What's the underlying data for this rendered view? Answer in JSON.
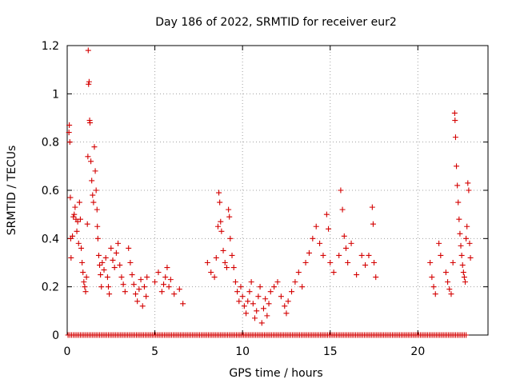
{
  "chart_data": {
    "type": "scatter",
    "title": "Day 186 of 2022, SRMTID for receiver eur2",
    "xlabel": "GPS time / hours",
    "ylabel": "SRMTID / TECUs",
    "xlim": [
      0,
      24
    ],
    "ylim": [
      0,
      1.2
    ],
    "x_ticks": [
      0,
      5,
      10,
      15,
      20
    ],
    "x_tick_labels": [
      "0",
      "5",
      "10",
      "15",
      "20"
    ],
    "y_ticks": [
      0,
      0.2,
      0.4,
      0.6,
      0.8,
      1.0,
      1.2
    ],
    "y_tick_labels": [
      "0",
      "0.2",
      "0.4",
      "0.6",
      "0.8",
      "1",
      "1.2"
    ],
    "grid": true,
    "marker": "+",
    "series_color": "#d40000",
    "series": [
      {
        "name": "SRMTID",
        "note": "approximate values read from the plot; zero-valued points run densely along the x-axis",
        "points": [
          [
            0.1,
            0.84
          ],
          [
            0.12,
            0.87
          ],
          [
            0.15,
            0.8
          ],
          [
            0.18,
            0.57
          ],
          [
            0.2,
            0.4
          ],
          [
            0.22,
            0.32
          ],
          [
            0.3,
            0.41
          ],
          [
            0.35,
            0.49
          ],
          [
            0.4,
            0.5
          ],
          [
            0.45,
            0.53
          ],
          [
            0.5,
            0.48
          ],
          [
            0.55,
            0.43
          ],
          [
            0.6,
            0.47
          ],
          [
            0.65,
            0.38
          ],
          [
            0.7,
            0.55
          ],
          [
            0.75,
            0.48
          ],
          [
            0.8,
            0.36
          ],
          [
            0.85,
            0.3
          ],
          [
            0.9,
            0.26
          ],
          [
            0.95,
            0.22
          ],
          [
            1.0,
            0.2
          ],
          [
            1.05,
            0.18
          ],
          [
            1.1,
            0.24
          ],
          [
            1.15,
            0.46
          ],
          [
            1.18,
            0.74
          ],
          [
            1.2,
            1.18
          ],
          [
            1.22,
            1.04
          ],
          [
            1.25,
            1.05
          ],
          [
            1.28,
            0.89
          ],
          [
            1.3,
            0.88
          ],
          [
            1.35,
            0.72
          ],
          [
            1.4,
            0.64
          ],
          [
            1.45,
            0.58
          ],
          [
            1.5,
            0.55
          ],
          [
            1.55,
            0.78
          ],
          [
            1.6,
            0.68
          ],
          [
            1.65,
            0.6
          ],
          [
            1.7,
            0.52
          ],
          [
            1.72,
            0.45
          ],
          [
            1.75,
            0.4
          ],
          [
            1.8,
            0.33
          ],
          [
            1.85,
            0.29
          ],
          [
            1.9,
            0.25
          ],
          [
            1.95,
            0.2
          ],
          [
            2.0,
            0.3
          ],
          [
            2.1,
            0.27
          ],
          [
            2.2,
            0.32
          ],
          [
            2.3,
            0.24
          ],
          [
            2.35,
            0.2
          ],
          [
            2.4,
            0.17
          ],
          [
            2.5,
            0.36
          ],
          [
            2.6,
            0.31
          ],
          [
            2.7,
            0.28
          ],
          [
            2.8,
            0.34
          ],
          [
            2.9,
            0.38
          ],
          [
            3.0,
            0.29
          ],
          [
            3.1,
            0.24
          ],
          [
            3.2,
            0.21
          ],
          [
            3.3,
            0.18
          ],
          [
            3.5,
            0.36
          ],
          [
            3.6,
            0.3
          ],
          [
            3.7,
            0.25
          ],
          [
            3.8,
            0.21
          ],
          [
            3.9,
            0.17
          ],
          [
            4.0,
            0.14
          ],
          [
            4.1,
            0.19
          ],
          [
            4.2,
            0.23
          ],
          [
            4.3,
            0.12
          ],
          [
            4.4,
            0.2
          ],
          [
            4.5,
            0.16
          ],
          [
            4.55,
            0.24
          ],
          [
            5.0,
            0.22
          ],
          [
            5.2,
            0.26
          ],
          [
            5.4,
            0.18
          ],
          [
            5.5,
            0.21
          ],
          [
            5.6,
            0.24
          ],
          [
            5.7,
            0.28
          ],
          [
            5.8,
            0.2
          ],
          [
            5.9,
            0.23
          ],
          [
            6.1,
            0.17
          ],
          [
            6.4,
            0.19
          ],
          [
            6.6,
            0.13
          ],
          [
            8.0,
            0.3
          ],
          [
            8.2,
            0.26
          ],
          [
            8.4,
            0.24
          ],
          [
            8.5,
            0.32
          ],
          [
            8.6,
            0.45
          ],
          [
            8.65,
            0.59
          ],
          [
            8.7,
            0.55
          ],
          [
            8.75,
            0.47
          ],
          [
            8.8,
            0.43
          ],
          [
            8.9,
            0.35
          ],
          [
            9.0,
            0.3
          ],
          [
            9.1,
            0.28
          ],
          [
            9.2,
            0.52
          ],
          [
            9.25,
            0.49
          ],
          [
            9.3,
            0.4
          ],
          [
            9.4,
            0.33
          ],
          [
            9.5,
            0.28
          ],
          [
            9.6,
            0.22
          ],
          [
            9.7,
            0.18
          ],
          [
            9.8,
            0.14
          ],
          [
            9.9,
            0.2
          ],
          [
            10.0,
            0.16
          ],
          [
            10.1,
            0.12
          ],
          [
            10.2,
            0.09
          ],
          [
            10.3,
            0.14
          ],
          [
            10.4,
            0.18
          ],
          [
            10.5,
            0.22
          ],
          [
            10.6,
            0.13
          ],
          [
            10.7,
            0.07
          ],
          [
            10.8,
            0.1
          ],
          [
            10.9,
            0.16
          ],
          [
            11.0,
            0.2
          ],
          [
            11.1,
            0.05
          ],
          [
            11.2,
            0.11
          ],
          [
            11.3,
            0.15
          ],
          [
            11.4,
            0.08
          ],
          [
            11.5,
            0.13
          ],
          [
            11.6,
            0.18
          ],
          [
            11.8,
            0.2
          ],
          [
            12.0,
            0.22
          ],
          [
            12.2,
            0.16
          ],
          [
            12.4,
            0.12
          ],
          [
            12.5,
            0.09
          ],
          [
            12.6,
            0.14
          ],
          [
            12.8,
            0.18
          ],
          [
            13.0,
            0.22
          ],
          [
            13.2,
            0.26
          ],
          [
            13.4,
            0.2
          ],
          [
            13.6,
            0.3
          ],
          [
            13.8,
            0.34
          ],
          [
            14.0,
            0.4
          ],
          [
            14.2,
            0.45
          ],
          [
            14.4,
            0.38
          ],
          [
            14.6,
            0.33
          ],
          [
            14.8,
            0.5
          ],
          [
            14.9,
            0.44
          ],
          [
            15.0,
            0.3
          ],
          [
            15.2,
            0.26
          ],
          [
            15.5,
            0.33
          ],
          [
            15.6,
            0.6
          ],
          [
            15.7,
            0.52
          ],
          [
            15.8,
            0.41
          ],
          [
            15.9,
            0.36
          ],
          [
            16.0,
            0.3
          ],
          [
            16.2,
            0.38
          ],
          [
            16.5,
            0.25
          ],
          [
            16.8,
            0.33
          ],
          [
            17.0,
            0.29
          ],
          [
            17.2,
            0.33
          ],
          [
            17.4,
            0.53
          ],
          [
            17.45,
            0.46
          ],
          [
            17.5,
            0.3
          ],
          [
            17.6,
            0.24
          ],
          [
            20.7,
            0.3
          ],
          [
            20.8,
            0.24
          ],
          [
            20.9,
            0.2
          ],
          [
            21.0,
            0.17
          ],
          [
            21.2,
            0.38
          ],
          [
            21.3,
            0.33
          ],
          [
            21.6,
            0.26
          ],
          [
            21.7,
            0.22
          ],
          [
            21.8,
            0.19
          ],
          [
            21.9,
            0.17
          ],
          [
            22.0,
            0.3
          ],
          [
            22.1,
            0.92
          ],
          [
            22.12,
            0.89
          ],
          [
            22.15,
            0.82
          ],
          [
            22.2,
            0.7
          ],
          [
            22.25,
            0.62
          ],
          [
            22.3,
            0.55
          ],
          [
            22.35,
            0.48
          ],
          [
            22.4,
            0.42
          ],
          [
            22.45,
            0.37
          ],
          [
            22.5,
            0.33
          ],
          [
            22.55,
            0.29
          ],
          [
            22.6,
            0.26
          ],
          [
            22.65,
            0.24
          ],
          [
            22.7,
            0.22
          ],
          [
            22.75,
            0.4
          ],
          [
            22.8,
            0.45
          ],
          [
            22.85,
            0.63
          ],
          [
            22.9,
            0.6
          ],
          [
            22.95,
            0.38
          ],
          [
            23.0,
            0.32
          ]
        ]
      }
    ]
  }
}
